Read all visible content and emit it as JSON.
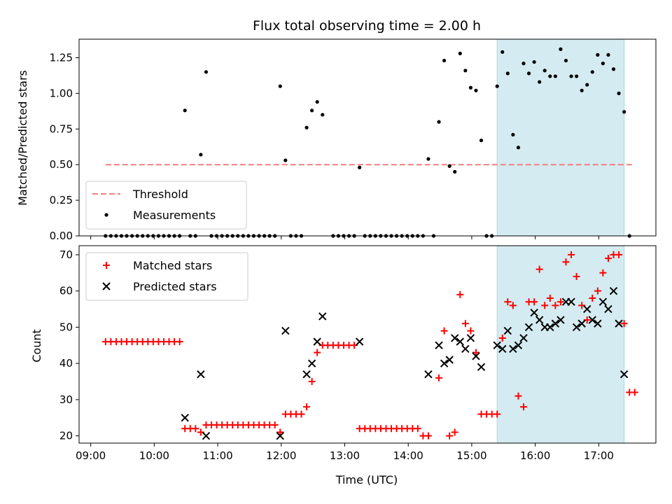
{
  "title": "Flux total observing time = 2.00 h",
  "chart_data": [
    {
      "type": "scatter",
      "ylabel": "Matched/Predicted stars",
      "ylim": [
        0,
        1.38
      ],
      "xlim": [
        "08:49",
        "17:54"
      ],
      "yticks": [
        "0.00",
        "0.25",
        "0.50",
        "0.75",
        "1.00",
        "1.25"
      ],
      "ytick_values": [
        0,
        0.25,
        0.5,
        0.75,
        1.0,
        1.25
      ],
      "highlight_span": [
        "15:24",
        "17:24"
      ],
      "highlight_color": "#d4ebf1",
      "threshold": {
        "name": "Threshold",
        "value": 0.5,
        "x": [
          "09:14",
          "17:32"
        ],
        "color": "#f08080"
      },
      "legend": {
        "position": "lower-left",
        "entries": [
          "Threshold",
          "Measurements"
        ]
      },
      "series": [
        {
          "name": "Measurements",
          "color": "#000000",
          "points": [
            [
              "09:14",
              0
            ],
            [
              "09:19",
              0
            ],
            [
              "09:24",
              0
            ],
            [
              "09:29",
              0
            ],
            [
              "09:34",
              0
            ],
            [
              "09:39",
              0
            ],
            [
              "09:44",
              0
            ],
            [
              "09:49",
              0
            ],
            [
              "09:54",
              0
            ],
            [
              "09:59",
              0
            ],
            [
              "10:04",
              0
            ],
            [
              "10:09",
              0
            ],
            [
              "10:14",
              0
            ],
            [
              "10:19",
              0
            ],
            [
              "10:24",
              0
            ],
            [
              "10:29",
              0.88
            ],
            [
              "10:34",
              0
            ],
            [
              "10:39",
              0
            ],
            [
              "10:44",
              0.57
            ],
            [
              "10:49",
              1.15
            ],
            [
              "10:54",
              0
            ],
            [
              "10:59",
              0
            ],
            [
              "11:04",
              0
            ],
            [
              "11:09",
              0
            ],
            [
              "11:14",
              0
            ],
            [
              "11:19",
              0
            ],
            [
              "11:24",
              0
            ],
            [
              "11:29",
              0
            ],
            [
              "11:34",
              0
            ],
            [
              "11:39",
              0
            ],
            [
              "11:44",
              0
            ],
            [
              "11:49",
              0
            ],
            [
              "11:54",
              0
            ],
            [
              "11:59",
              1.05
            ],
            [
              "12:04",
              0.53
            ],
            [
              "12:09",
              0
            ],
            [
              "12:14",
              0
            ],
            [
              "12:19",
              0
            ],
            [
              "12:24",
              0.76
            ],
            [
              "12:29",
              0.88
            ],
            [
              "12:34",
              0.94
            ],
            [
              "12:39",
              0.85
            ],
            [
              "12:49",
              0
            ],
            [
              "12:54",
              0
            ],
            [
              "12:59",
              0
            ],
            [
              "13:04",
              0
            ],
            [
              "13:09",
              0
            ],
            [
              "13:14",
              0.48
            ],
            [
              "13:19",
              0
            ],
            [
              "13:24",
              0
            ],
            [
              "13:29",
              0
            ],
            [
              "13:34",
              0
            ],
            [
              "13:39",
              0
            ],
            [
              "13:44",
              0
            ],
            [
              "13:49",
              0
            ],
            [
              "13:54",
              0
            ],
            [
              "13:59",
              0
            ],
            [
              "14:04",
              0
            ],
            [
              "14:09",
              0
            ],
            [
              "14:14",
              0
            ],
            [
              "14:19",
              0.54
            ],
            [
              "14:24",
              0
            ],
            [
              "14:29",
              0.8
            ],
            [
              "14:34",
              1.23
            ],
            [
              "14:39",
              0.49
            ],
            [
              "14:44",
              0.45
            ],
            [
              "14:49",
              1.28
            ],
            [
              "14:54",
              1.16
            ],
            [
              "14:59",
              1.04
            ],
            [
              "15:04",
              1.02
            ],
            [
              "15:09",
              0.67
            ],
            [
              "15:14",
              0
            ],
            [
              "15:19",
              0
            ],
            [
              "15:24",
              1.05
            ],
            [
              "15:29",
              1.29
            ],
            [
              "15:34",
              1.14
            ],
            [
              "15:39",
              0.71
            ],
            [
              "15:44",
              0.62
            ],
            [
              "15:49",
              1.21
            ],
            [
              "15:54",
              1.14
            ],
            [
              "15:59",
              1.22
            ],
            [
              "16:04",
              1.08
            ],
            [
              "16:09",
              1.16
            ],
            [
              "16:14",
              1.12
            ],
            [
              "16:19",
              1.12
            ],
            [
              "16:24",
              1.31
            ],
            [
              "16:29",
              1.23
            ],
            [
              "16:34",
              1.12
            ],
            [
              "16:39",
              1.12
            ],
            [
              "16:44",
              1.02
            ],
            [
              "16:49",
              1.06
            ],
            [
              "16:54",
              1.15
            ],
            [
              "16:59",
              1.27
            ],
            [
              "17:04",
              1.21
            ],
            [
              "17:09",
              1.27
            ],
            [
              "17:14",
              1.17
            ],
            [
              "17:19",
              1.0
            ],
            [
              "17:24",
              0.87
            ],
            [
              "17:29",
              0
            ]
          ]
        }
      ]
    },
    {
      "type": "scatter",
      "xlabel": "Time (UTC)",
      "ylabel": "Count",
      "ylim": [
        18,
        72.5
      ],
      "xlim": [
        "08:49",
        "17:54"
      ],
      "xticks": [
        "09:00",
        "10:00",
        "11:00",
        "12:00",
        "13:00",
        "14:00",
        "15:00",
        "16:00",
        "17:00"
      ],
      "yticks": [
        "20",
        "30",
        "40",
        "50",
        "60",
        "70"
      ],
      "ytick_values": [
        20,
        30,
        40,
        50,
        60,
        70
      ],
      "highlight_span": [
        "15:24",
        "17:24"
      ],
      "highlight_color": "#d4ebf1",
      "legend": {
        "position": "top-left",
        "entries": [
          "Matched stars",
          "Predicted stars"
        ]
      },
      "series": [
        {
          "name": "Matched stars",
          "marker": "plus",
          "color": "#ff0000",
          "points": [
            [
              "09:14",
              46
            ],
            [
              "09:19",
              46
            ],
            [
              "09:24",
              46
            ],
            [
              "09:29",
              46
            ],
            [
              "09:34",
              46
            ],
            [
              "09:39",
              46
            ],
            [
              "09:44",
              46
            ],
            [
              "09:49",
              46
            ],
            [
              "09:54",
              46
            ],
            [
              "09:59",
              46
            ],
            [
              "10:04",
              46
            ],
            [
              "10:09",
              46
            ],
            [
              "10:14",
              46
            ],
            [
              "10:19",
              46
            ],
            [
              "10:24",
              46
            ],
            [
              "10:29",
              22
            ],
            [
              "10:34",
              22
            ],
            [
              "10:39",
              22
            ],
            [
              "10:44",
              21
            ],
            [
              "10:49",
              23
            ],
            [
              "10:54",
              23
            ],
            [
              "10:59",
              23
            ],
            [
              "11:04",
              23
            ],
            [
              "11:09",
              23
            ],
            [
              "11:14",
              23
            ],
            [
              "11:19",
              23
            ],
            [
              "11:24",
              23
            ],
            [
              "11:29",
              23
            ],
            [
              "11:34",
              23
            ],
            [
              "11:39",
              23
            ],
            [
              "11:44",
              23
            ],
            [
              "11:49",
              23
            ],
            [
              "11:54",
              23
            ],
            [
              "11:59",
              21
            ],
            [
              "12:04",
              26
            ],
            [
              "12:09",
              26
            ],
            [
              "12:14",
              26
            ],
            [
              "12:19",
              26
            ],
            [
              "12:24",
              28
            ],
            [
              "12:29",
              35
            ],
            [
              "12:34",
              43
            ],
            [
              "12:39",
              45
            ],
            [
              "12:44",
              45
            ],
            [
              "12:49",
              45
            ],
            [
              "12:54",
              45
            ],
            [
              "12:59",
              45
            ],
            [
              "13:04",
              45
            ],
            [
              "13:09",
              45
            ],
            [
              "13:14",
              22
            ],
            [
              "13:19",
              22
            ],
            [
              "13:24",
              22
            ],
            [
              "13:29",
              22
            ],
            [
              "13:34",
              22
            ],
            [
              "13:39",
              22
            ],
            [
              "13:44",
              22
            ],
            [
              "13:49",
              22
            ],
            [
              "13:54",
              22
            ],
            [
              "13:59",
              22
            ],
            [
              "14:04",
              22
            ],
            [
              "14:09",
              22
            ],
            [
              "14:14",
              20
            ],
            [
              "14:19",
              20
            ],
            [
              "14:29",
              36
            ],
            [
              "14:34",
              49
            ],
            [
              "14:39",
              20
            ],
            [
              "14:44",
              21
            ],
            [
              "14:49",
              59
            ],
            [
              "14:54",
              51
            ],
            [
              "14:59",
              49
            ],
            [
              "15:04",
              43
            ],
            [
              "15:09",
              26
            ],
            [
              "15:14",
              26
            ],
            [
              "15:19",
              26
            ],
            [
              "15:24",
              26
            ],
            [
              "15:29",
              47
            ],
            [
              "15:34",
              57
            ],
            [
              "15:39",
              56
            ],
            [
              "15:44",
              31
            ],
            [
              "15:49",
              28
            ],
            [
              "15:54",
              57
            ],
            [
              "15:59",
              57
            ],
            [
              "16:04",
              66
            ],
            [
              "16:09",
              56
            ],
            [
              "16:14",
              58
            ],
            [
              "16:19",
              56
            ],
            [
              "16:24",
              57
            ],
            [
              "16:29",
              68
            ],
            [
              "16:34",
              70
            ],
            [
              "16:39",
              64
            ],
            [
              "16:44",
              56
            ],
            [
              "16:49",
              52
            ],
            [
              "16:54",
              58
            ],
            [
              "16:59",
              60
            ],
            [
              "17:04",
              65
            ],
            [
              "17:09",
              69
            ],
            [
              "17:14",
              70
            ],
            [
              "17:19",
              70
            ],
            [
              "17:24",
              51
            ],
            [
              "17:29",
              32
            ],
            [
              "17:34",
              32
            ]
          ]
        },
        {
          "name": "Predicted stars",
          "marker": "x",
          "color": "#000000",
          "points": [
            [
              "10:29",
              25
            ],
            [
              "10:44",
              37
            ],
            [
              "10:49",
              20
            ],
            [
              "11:59",
              20
            ],
            [
              "12:04",
              49
            ],
            [
              "12:24",
              37
            ],
            [
              "12:29",
              40
            ],
            [
              "12:34",
              46
            ],
            [
              "12:39",
              53
            ],
            [
              "13:14",
              46
            ],
            [
              "14:19",
              37
            ],
            [
              "14:29",
              45
            ],
            [
              "14:34",
              40
            ],
            [
              "14:39",
              41
            ],
            [
              "14:44",
              47
            ],
            [
              "14:49",
              46
            ],
            [
              "14:54",
              44
            ],
            [
              "14:59",
              47
            ],
            [
              "15:04",
              42
            ],
            [
              "15:09",
              39
            ],
            [
              "15:24",
              45
            ],
            [
              "15:29",
              44
            ],
            [
              "15:34",
              49
            ],
            [
              "15:39",
              44
            ],
            [
              "15:44",
              45
            ],
            [
              "15:49",
              47
            ],
            [
              "15:54",
              50
            ],
            [
              "15:59",
              54
            ],
            [
              "16:04",
              52
            ],
            [
              "16:09",
              50
            ],
            [
              "16:14",
              50
            ],
            [
              "16:19",
              51
            ],
            [
              "16:24",
              52
            ],
            [
              "16:29",
              57
            ],
            [
              "16:34",
              57
            ],
            [
              "16:39",
              50
            ],
            [
              "16:44",
              51
            ],
            [
              "16:49",
              55
            ],
            [
              "16:54",
              52
            ],
            [
              "16:59",
              51
            ],
            [
              "17:04",
              57
            ],
            [
              "17:09",
              55
            ],
            [
              "17:14",
              60
            ],
            [
              "17:19",
              51
            ],
            [
              "17:24",
              37
            ]
          ]
        }
      ]
    }
  ]
}
